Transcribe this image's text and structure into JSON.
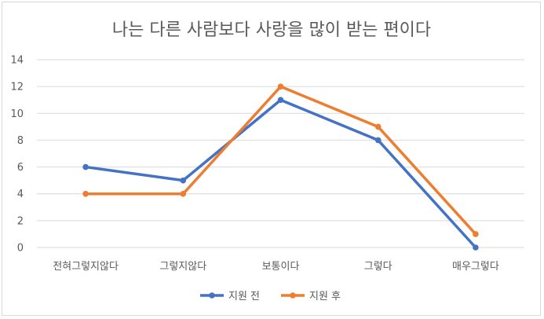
{
  "chart_data": {
    "type": "line",
    "title": "나는 다른 사람보다 사랑을 많이 받는 편이다",
    "categories": [
      "전혀그렇지않다",
      "그렇지않다",
      "보통이다",
      "그렇다",
      "매우그렇다"
    ],
    "series": [
      {
        "name": "지원 전",
        "values": [
          6,
          5,
          11,
          8,
          0
        ],
        "color": "#4472c4"
      },
      {
        "name": "지원 후",
        "values": [
          4,
          4,
          12,
          9,
          1
        ],
        "color": "#ed7d31"
      }
    ],
    "ylim": [
      0,
      14
    ],
    "yticks": [
      0,
      2,
      4,
      6,
      8,
      10,
      12,
      14
    ],
    "grid": true,
    "legend": "bottom",
    "xlabel": "",
    "ylabel": ""
  }
}
